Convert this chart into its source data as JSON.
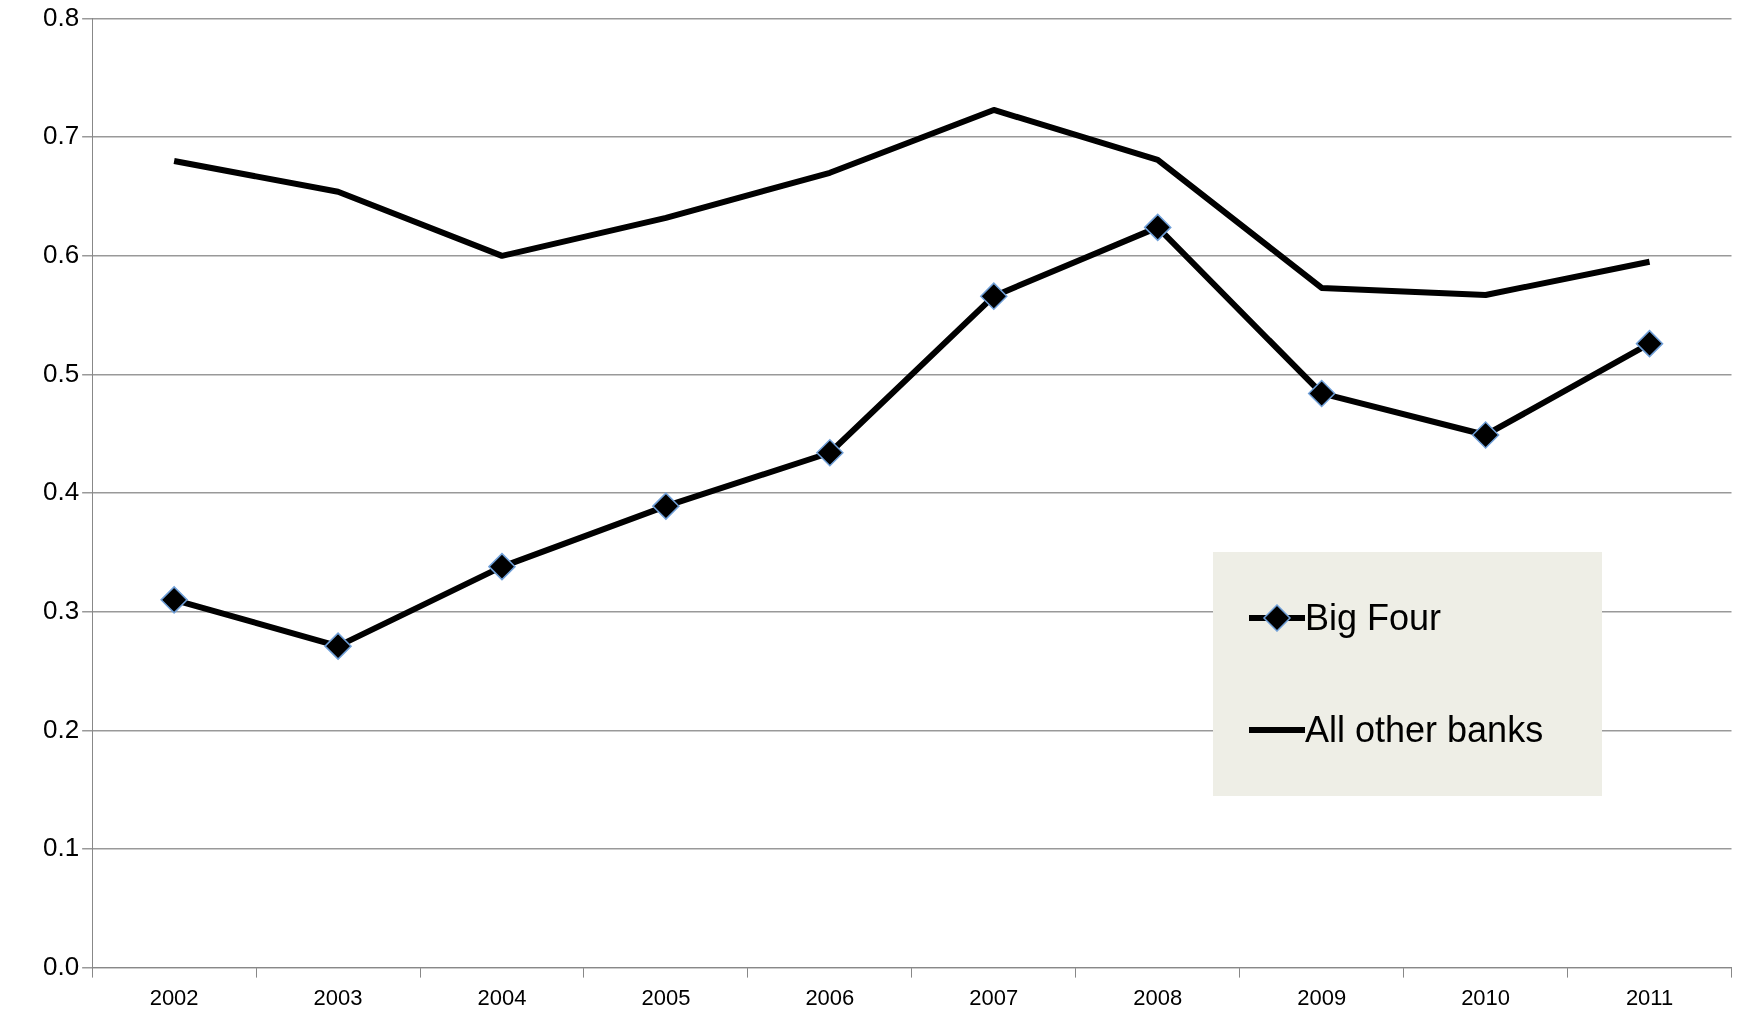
{
  "chart_data": {
    "type": "line",
    "categories": [
      "2002",
      "2003",
      "2004",
      "2005",
      "2006",
      "2007",
      "2008",
      "2009",
      "2010",
      "2011"
    ],
    "series": [
      {
        "name": "Big Four",
        "color": "#000000",
        "marker": "diamond",
        "values": [
          0.31,
          0.271,
          0.338,
          0.389,
          0.434,
          0.566,
          0.624,
          0.484,
          0.449,
          0.526
        ]
      },
      {
        "name": "All other banks",
        "color": "#000000",
        "marker": "none",
        "values": [
          0.68,
          0.654,
          0.6,
          0.632,
          0.67,
          0.723,
          0.681,
          0.573,
          0.567,
          0.595
        ]
      }
    ],
    "ylim": [
      0,
      0.8
    ],
    "yticks": [
      {
        "value": 0,
        "label": "0.0"
      },
      0.1,
      0.2,
      0.3,
      0.4,
      0.5,
      0.6,
      0.7,
      0.8
    ],
    "grid": "y",
    "legend": "right",
    "line_style": "solid"
  }
}
